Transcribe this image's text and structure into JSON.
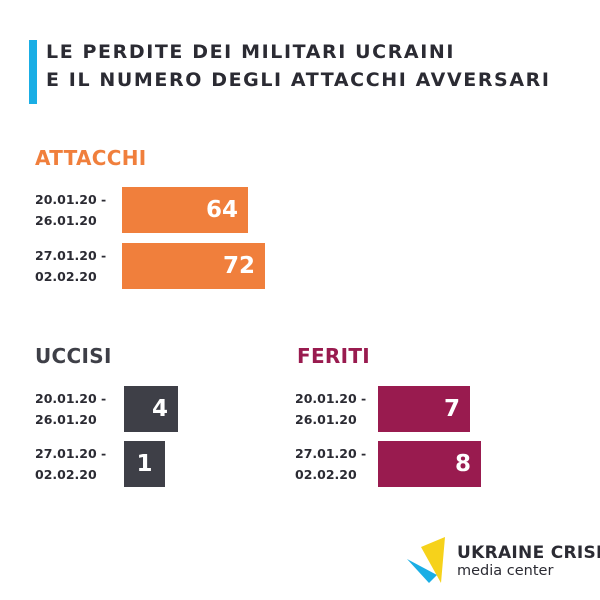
{
  "title_lines": [
    "Le perdite dei militari ucraini",
    "e il numero degli attacchi avversari"
  ],
  "chart_data": [
    {
      "type": "bar",
      "title": "ATTACCHI",
      "color": "#f07f3c",
      "categories": [
        [
          "20.01.20 -",
          "26.01.20"
        ],
        [
          "27.01.20 -",
          "02.02.20"
        ]
      ],
      "values": [
        64,
        72
      ]
    },
    {
      "type": "bar",
      "title": "UCCISI",
      "color": "#3e3f47",
      "categories": [
        [
          "20.01.20 -",
          "26.01.20"
        ],
        [
          "27.01.20 -",
          "02.02.20"
        ]
      ],
      "values": [
        4,
        1
      ]
    },
    {
      "type": "bar",
      "title": "FERITI",
      "color": "#991b4f",
      "categories": [
        [
          "20.01.20 -",
          "26.01.20"
        ],
        [
          "27.01.20 -",
          "02.02.20"
        ]
      ],
      "values": [
        7,
        8
      ]
    }
  ],
  "logo": {
    "line1": "UKRAINE CRISIS",
    "line2": "media center",
    "colors": [
      "#1aaee5",
      "#f6d21b",
      "#2b2b33"
    ]
  }
}
